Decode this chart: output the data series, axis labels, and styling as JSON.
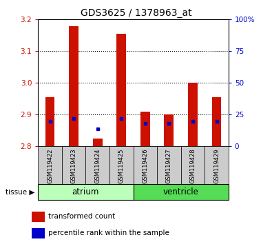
{
  "title": "GDS3625 / 1378963_at",
  "samples": [
    "GSM119422",
    "GSM119423",
    "GSM119424",
    "GSM119425",
    "GSM119426",
    "GSM119427",
    "GSM119428",
    "GSM119429"
  ],
  "transformed_count": [
    2.955,
    3.18,
    2.825,
    3.155,
    2.91,
    2.9,
    3.0,
    2.955
  ],
  "percentile_rank_pct": [
    20,
    22,
    14,
    22,
    18,
    18,
    20,
    20
  ],
  "ylim_left": [
    2.8,
    3.2
  ],
  "ylim_right": [
    0,
    100
  ],
  "right_ticks": [
    0,
    25,
    50,
    75,
    100
  ],
  "right_tick_labels": [
    "0",
    "25",
    "50",
    "75",
    "100%"
  ],
  "left_ticks": [
    2.8,
    2.9,
    3.0,
    3.1,
    3.2
  ],
  "dotted_lines": [
    2.9,
    3.0,
    3.1
  ],
  "bar_color": "#cc1100",
  "dot_color": "#0000cc",
  "bar_bottom": 2.8,
  "atrium_color": "#bbffbb",
  "ventricle_color": "#55dd55",
  "legend_items": [
    {
      "label": "transformed count",
      "color": "#cc1100"
    },
    {
      "label": "percentile rank within the sample",
      "color": "#0000cc"
    }
  ],
  "bg_color": "#ffffff",
  "plot_bg": "#ffffff",
  "axis_color_left": "#cc1100",
  "axis_color_right": "#0000cc",
  "sample_bg_color": "#cccccc"
}
